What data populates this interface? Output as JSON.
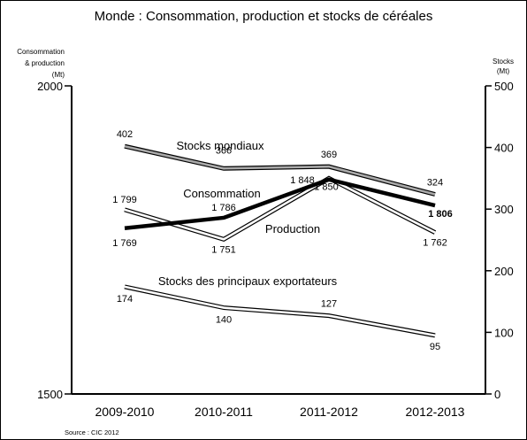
{
  "chart_data": {
    "type": "line",
    "title": "Monde : Consommation, production et stocks de céréales",
    "left_axis_label": [
      "Consommation",
      "& production",
      "(Mt)"
    ],
    "right_axis_label": [
      "Stocks",
      "(Mt)"
    ],
    "source": "Source : CIC 2012",
    "categories": [
      "2009-2010",
      "2010-2011",
      "2011-2012",
      "2012-2013"
    ],
    "left_axis": {
      "min": 1500,
      "max": 2000,
      "ticks": [
        1500,
        2000
      ]
    },
    "right_axis": {
      "min": 0,
      "max": 500,
      "ticks": [
        0,
        100,
        200,
        300,
        400,
        500
      ]
    },
    "series": [
      {
        "name": "Stocks mondiaux",
        "axis": "right",
        "values": [
          402,
          366,
          369,
          324
        ],
        "labels": [
          "402",
          "366",
          "369",
          "324"
        ],
        "style": "double-gray"
      },
      {
        "name": "Production",
        "axis": "left",
        "values": [
          1799,
          1751,
          1850,
          1762
        ],
        "labels": [
          "1 799",
          "1 751",
          "1 850",
          "1 762"
        ],
        "style": "double-white"
      },
      {
        "name": "Consommation",
        "axis": "left",
        "values": [
          1769,
          1786,
          1848,
          1806
        ],
        "labels": [
          "1 769",
          "1 786",
          "1 848",
          "1 806"
        ],
        "style": "thick-black"
      },
      {
        "name": "Stocks des principaux exportateurs",
        "axis": "right",
        "values": [
          174,
          140,
          127,
          95
        ],
        "labels": [
          "174",
          "140",
          "127",
          "95"
        ],
        "style": "double-white"
      }
    ]
  }
}
